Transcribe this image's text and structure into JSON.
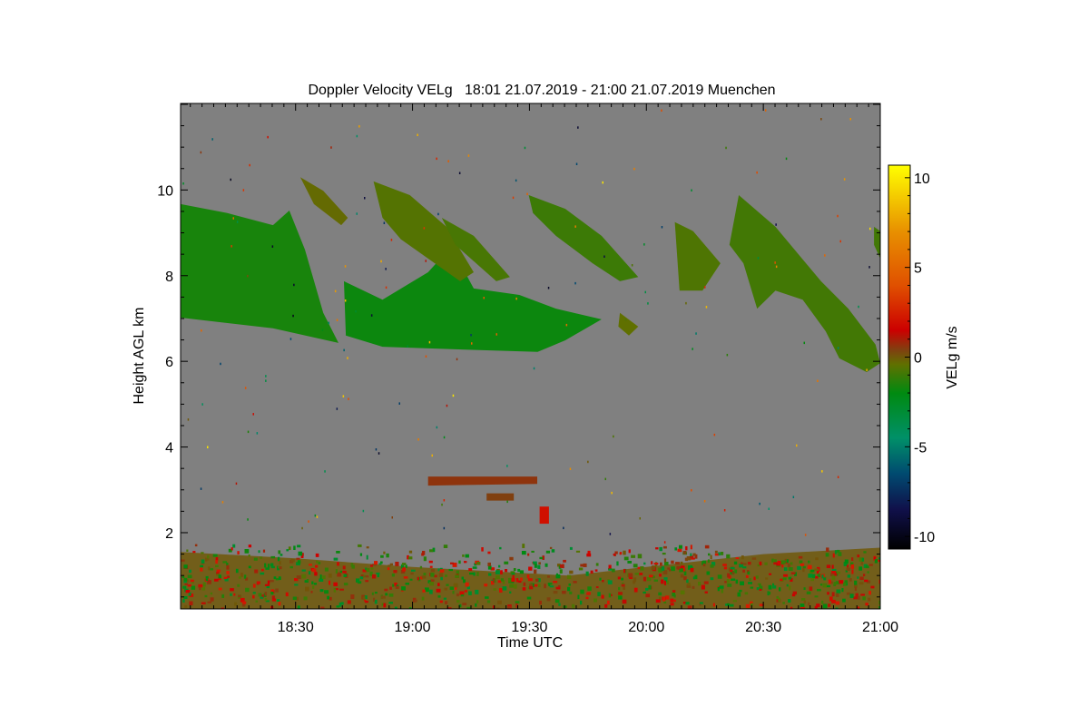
{
  "chart_data": {
    "type": "heatmap",
    "title": "Doppler Velocity VELg   18:01 21.07.2019 - 21:00 21.07.2019 Muenchen",
    "xlabel": "Time UTC",
    "ylabel": "Height AGL km",
    "colorbar_label": "VELg m/s",
    "x_unit": "minutes since 18:00 UTC",
    "xlim": [
      0.5,
      180
    ],
    "ylim": [
      0.22,
      12.02
    ],
    "x_ticks": [
      {
        "value": 30,
        "label": "18:30"
      },
      {
        "value": 60,
        "label": "19:00"
      },
      {
        "value": 90,
        "label": "19:30"
      },
      {
        "value": 120,
        "label": "20:00"
      },
      {
        "value": 150,
        "label": "20:30"
      },
      {
        "value": 180,
        "label": "21:00"
      }
    ],
    "y_ticks": [
      {
        "value": 2,
        "label": "2"
      },
      {
        "value": 4,
        "label": "4"
      },
      {
        "value": 6,
        "label": "6"
      },
      {
        "value": 8,
        "label": "8"
      },
      {
        "value": 10,
        "label": "10"
      }
    ],
    "colorbar_range": [
      -10.7,
      10.7
    ],
    "colorbar_ticks": [
      {
        "value": 10,
        "label": "10"
      },
      {
        "value": 5,
        "label": "5"
      },
      {
        "value": 0,
        "label": "0"
      },
      {
        "value": -5,
        "label": "-5"
      },
      {
        "value": -10,
        "label": "-10"
      }
    ],
    "colormap": [
      {
        "v": -10.7,
        "c": "#000000"
      },
      {
        "v": -8.5,
        "c": "#10104a"
      },
      {
        "v": -6.5,
        "c": "#004a70"
      },
      {
        "v": -4.5,
        "c": "#009068"
      },
      {
        "v": -2.0,
        "c": "#008a10"
      },
      {
        "v": -0.4,
        "c": "#607000"
      },
      {
        "v": 0.4,
        "c": "#804010"
      },
      {
        "v": 1.5,
        "c": "#cc0000"
      },
      {
        "v": 4.0,
        "c": "#e05000"
      },
      {
        "v": 7.0,
        "c": "#e89000"
      },
      {
        "v": 10.7,
        "c": "#ffff00"
      }
    ],
    "background_color": "#808080",
    "echo_regions": [
      {
        "name": "cirrus-left",
        "velocity": -1.6,
        "points": [
          [
            0.5,
            9.67
          ],
          [
            12.5,
            9.46
          ],
          [
            24.2,
            9.18
          ],
          [
            28.4,
            9.52
          ],
          [
            32.4,
            8.61
          ],
          [
            37.1,
            7.13
          ],
          [
            41.0,
            6.43
          ],
          [
            24.2,
            6.77
          ],
          [
            0.5,
            7.02
          ]
        ]
      },
      {
        "name": "cirrus-middle",
        "velocity": -1.8,
        "points": [
          [
            42.4,
            7.87
          ],
          [
            52.3,
            7.44
          ],
          [
            64.0,
            8.08
          ],
          [
            68.7,
            8.55
          ],
          [
            72.2,
            8.29
          ],
          [
            75.7,
            7.7
          ],
          [
            87.4,
            7.55
          ],
          [
            96.8,
            7.23
          ],
          [
            108.5,
            6.98
          ],
          [
            99.2,
            6.49
          ],
          [
            92.1,
            6.22
          ],
          [
            71.0,
            6.28
          ],
          [
            52.3,
            6.34
          ],
          [
            42.9,
            6.6
          ]
        ]
      },
      {
        "name": "cirrus-streak-1",
        "velocity": -0.3,
        "points": [
          [
            31.2,
            10.3
          ],
          [
            37.1,
            9.98
          ],
          [
            43.4,
            9.35
          ],
          [
            41.7,
            9.18
          ],
          [
            34.7,
            9.67
          ]
        ]
      },
      {
        "name": "cirrus-streak-2",
        "velocity": -0.6,
        "points": [
          [
            50.0,
            10.2
          ],
          [
            59.3,
            9.88
          ],
          [
            68.7,
            9.14
          ],
          [
            75.7,
            8.08
          ],
          [
            72.2,
            7.87
          ],
          [
            64.0,
            8.4
          ],
          [
            57.0,
            8.85
          ],
          [
            52.3,
            9.35
          ]
        ]
      },
      {
        "name": "cirrus-streak-3",
        "velocity": -0.8,
        "points": [
          [
            67.5,
            9.35
          ],
          [
            75.7,
            8.93
          ],
          [
            85.0,
            7.97
          ],
          [
            81.5,
            7.87
          ],
          [
            71.0,
            8.72
          ]
        ]
      },
      {
        "name": "cirrus-streak-4",
        "velocity": -1.0,
        "points": [
          [
            89.8,
            9.88
          ],
          [
            99.2,
            9.56
          ],
          [
            108.5,
            8.93
          ],
          [
            117.9,
            7.97
          ],
          [
            113.2,
            7.87
          ],
          [
            106.2,
            8.29
          ],
          [
            96.8,
            8.93
          ],
          [
            90.9,
            9.46
          ]
        ]
      },
      {
        "name": "cirrus-streak-5",
        "velocity": -0.7,
        "points": [
          [
            127.3,
            9.25
          ],
          [
            132.0,
            9.04
          ],
          [
            139.0,
            8.29
          ],
          [
            134.4,
            7.65
          ],
          [
            128.5,
            7.65
          ]
        ]
      },
      {
        "name": "cirrus-right",
        "velocity": -0.9,
        "points": [
          [
            143.7,
            9.88
          ],
          [
            153.1,
            9.14
          ],
          [
            164.8,
            7.87
          ],
          [
            171.8,
            7.23
          ],
          [
            178.8,
            6.39
          ],
          [
            180,
            5.96
          ],
          [
            176.5,
            5.75
          ],
          [
            169.5,
            6.07
          ],
          [
            166.0,
            6.7
          ],
          [
            160.1,
            7.44
          ],
          [
            153.1,
            7.65
          ],
          [
            148.4,
            7.23
          ],
          [
            144.9,
            8.29
          ],
          [
            141.3,
            8.72
          ]
        ]
      },
      {
        "name": "cirrus-far-right",
        "velocity": -0.9,
        "points": [
          [
            178.4,
            9.14
          ],
          [
            180,
            9.04
          ],
          [
            180,
            8.4
          ],
          [
            178.4,
            8.72
          ]
        ]
      },
      {
        "name": "cirrus-small",
        "velocity": -0.4,
        "points": [
          [
            113.2,
            7.13
          ],
          [
            117.9,
            6.81
          ],
          [
            115.5,
            6.6
          ],
          [
            112.8,
            6.81
          ]
        ]
      },
      {
        "name": "midlevel-layer",
        "velocity": 0.6,
        "points": [
          [
            64,
            3.31
          ],
          [
            92,
            3.31
          ],
          [
            92,
            3.14
          ],
          [
            64,
            3.1
          ]
        ]
      },
      {
        "name": "midlevel-fragment",
        "velocity": 0.4,
        "points": [
          [
            79,
            2.92
          ],
          [
            86,
            2.92
          ],
          [
            86,
            2.75
          ],
          [
            79,
            2.75
          ]
        ]
      },
      {
        "name": "midlevel-red-blob",
        "velocity": 2.0,
        "points": [
          [
            92.6,
            2.61
          ],
          [
            95,
            2.61
          ],
          [
            95,
            2.21
          ],
          [
            92.6,
            2.21
          ]
        ]
      },
      {
        "name": "boundary-layer",
        "velocity": 0.0,
        "points": [
          [
            0.5,
            1.55
          ],
          [
            30,
            1.4
          ],
          [
            60,
            1.2
          ],
          [
            100,
            1.0
          ],
          [
            130,
            1.3
          ],
          [
            150,
            1.5
          ],
          [
            180,
            1.65
          ],
          [
            180,
            0.22
          ],
          [
            0.5,
            0.22
          ]
        ]
      }
    ]
  }
}
